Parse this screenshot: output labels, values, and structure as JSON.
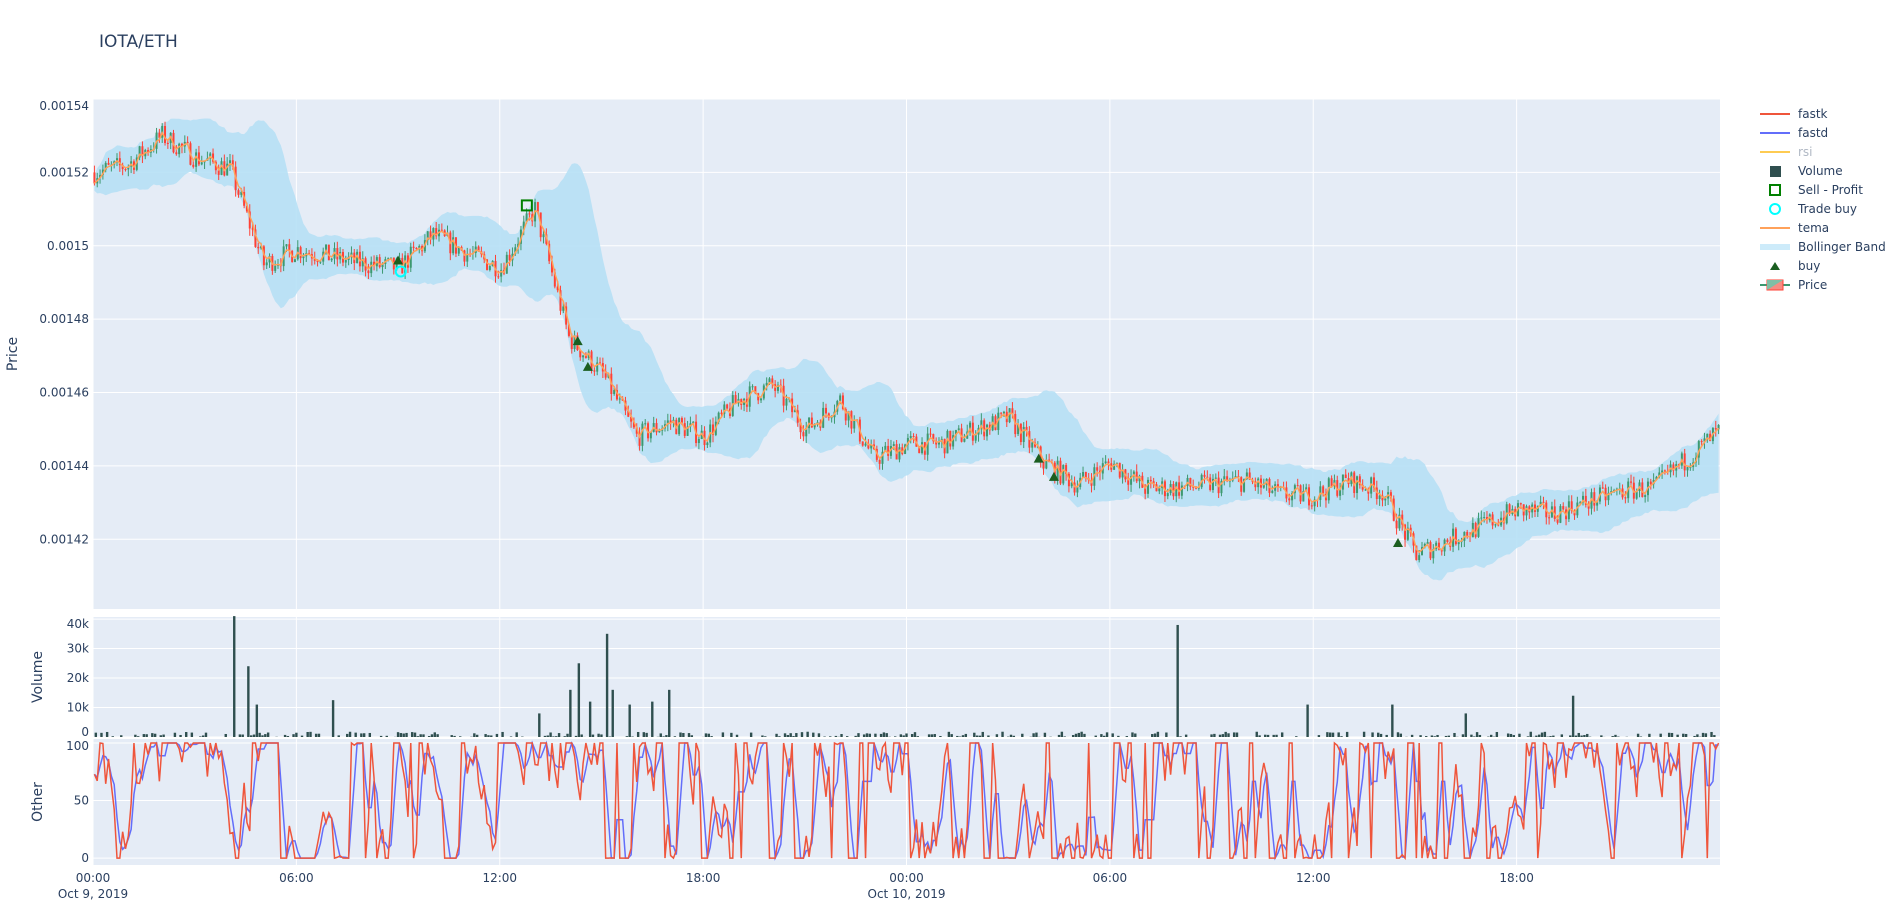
{
  "title": "IOTA/ETH",
  "colors": {
    "plot_bg": "#E5ECF6",
    "increasing": "#3D9970",
    "decreasing": "#FF4136",
    "fastk": "#EF553B",
    "fastd": "#636EFA",
    "rsi": "#FECB52",
    "volume": "#2F4F4F",
    "sell_profit": "#008000",
    "trade_buy": "#00FFFF",
    "tema": "#FFA15A",
    "bollinger": "#B6E0F5",
    "buy": "#1B5E20"
  },
  "legend": [
    {
      "label": "fastk",
      "icon": "line",
      "color": "#EF553B"
    },
    {
      "label": "fastd",
      "icon": "line",
      "color": "#636EFA"
    },
    {
      "label": "rsi",
      "icon": "line",
      "color": "#FECB52",
      "hidden": true
    },
    {
      "label": "Volume",
      "icon": "square",
      "color": "#2F4F4F"
    },
    {
      "label": "Sell - Profit",
      "icon": "square-open",
      "color": "#008000"
    },
    {
      "label": "Trade buy",
      "icon": "circle-open",
      "color": "#00FFFF"
    },
    {
      "label": "tema",
      "icon": "line",
      "color": "#FFA15A"
    },
    {
      "label": "Bollinger Band",
      "icon": "band",
      "color": "#B6E0F5"
    },
    {
      "label": "buy",
      "icon": "triangle-up",
      "color": "#1B5E20"
    },
    {
      "label": "Price",
      "icon": "candlestick",
      "color": "#3D9970"
    }
  ],
  "chart_data": {
    "type": "candlestick",
    "x_range": [
      "2019-10-09 00:00",
      "2019-10-10 23:55"
    ],
    "x_ticks": [
      {
        "label": "00:00",
        "sub": "Oct 9, 2019",
        "hour": 0
      },
      {
        "label": "06:00",
        "sub": "",
        "hour": 6
      },
      {
        "label": "12:00",
        "sub": "",
        "hour": 12
      },
      {
        "label": "18:00",
        "sub": "",
        "hour": 18
      },
      {
        "label": "00:00",
        "sub": "Oct 10, 2019",
        "hour": 24
      },
      {
        "label": "06:00",
        "sub": "",
        "hour": 30
      },
      {
        "label": "12:00",
        "sub": "",
        "hour": 36
      },
      {
        "label": "18:00",
        "sub": "",
        "hour": 42
      }
    ],
    "price": {
      "ylabel": "Price",
      "ylim": [
        0.001401,
        0.00154
      ],
      "y_ticks": [
        {
          "v": 0.00154,
          "label": "0.00154"
        },
        {
          "v": 0.00152,
          "label": "0.00152"
        },
        {
          "v": 0.0015,
          "label": "0.0015"
        },
        {
          "v": 0.00148,
          "label": "0.00148"
        },
        {
          "v": 0.00146,
          "label": "0.00146"
        },
        {
          "v": 0.00144,
          "label": "0.00144"
        },
        {
          "v": 0.00142,
          "label": "0.00142"
        }
      ],
      "hourly_close": [
        0.00152,
        0.001522,
        0.00153,
        0.001524,
        0.001521,
        0.001495,
        0.001499,
        0.001497,
        0.001495,
        0.001494,
        0.001503,
        0.001498,
        0.001494,
        0.00151,
        0.001475,
        0.001465,
        0.001448,
        0.001452,
        0.001448,
        0.001458,
        0.001462,
        0.00145,
        0.001458,
        0.001442,
        0.001446,
        0.001446,
        0.00145,
        0.001453,
        0.001441,
        0.001435,
        0.001441,
        0.001434,
        0.001434,
        0.001435,
        0.001436,
        0.001432,
        0.001432,
        0.001436,
        0.001433,
        0.001416,
        0.00142,
        0.001424,
        0.001428,
        0.001427,
        0.00143,
        0.001433,
        0.001434,
        0.001442,
        0.00145
      ],
      "buy": [
        [
          9.0,
          0.001496
        ],
        [
          14.3,
          0.001474
        ],
        [
          14.6,
          0.001467
        ],
        [
          27.9,
          0.001442
        ],
        [
          28.35,
          0.001437
        ],
        [
          38.5,
          0.001419
        ]
      ],
      "trade_buy": [
        [
          9.08,
          0.001493
        ]
      ],
      "sell_profit": [
        [
          12.8,
          0.001511
        ]
      ]
    },
    "volume": {
      "ylabel": "Volume",
      "ylim": [
        0,
        40700
      ],
      "y_ticks": [
        {
          "v": 0,
          "label": "0"
        },
        {
          "v": 10000,
          "label": "10k"
        },
        {
          "v": 20000,
          "label": "20k"
        },
        {
          "v": 30000,
          "label": "30k"
        },
        {
          "v": 40000,
          "label": "40k"
        }
      ],
      "spikes": [
        [
          4.2,
          41000
        ],
        [
          4.55,
          24000
        ],
        [
          4.85,
          11000
        ],
        [
          7.1,
          12500
        ],
        [
          13.2,
          8000
        ],
        [
          14.1,
          16000
        ],
        [
          14.35,
          25000
        ],
        [
          14.7,
          12000
        ],
        [
          15.2,
          35000
        ],
        [
          15.3,
          16000
        ],
        [
          15.8,
          11000
        ],
        [
          16.5,
          12000
        ],
        [
          17.0,
          16000
        ],
        [
          32.0,
          38000
        ],
        [
          35.8,
          11000
        ],
        [
          38.3,
          11000
        ],
        [
          40.5,
          8000
        ],
        [
          43.7,
          14000
        ]
      ]
    },
    "other": {
      "ylabel": "Other",
      "ylim": [
        -6,
        103.5
      ],
      "y_ticks": [
        {
          "v": 0,
          "label": "0"
        },
        {
          "v": 50,
          "label": "50"
        },
        {
          "v": 100,
          "label": "100"
        }
      ]
    },
    "grid": true,
    "legend_position": "right"
  }
}
